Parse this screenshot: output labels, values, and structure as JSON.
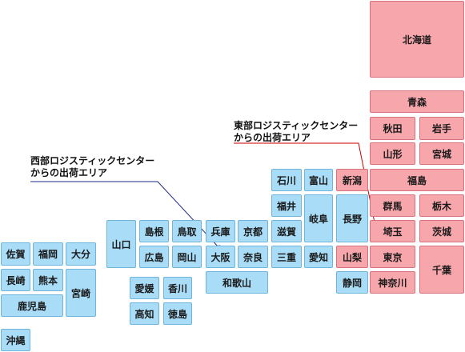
{
  "colors": {
    "west": "#a9dcf7",
    "east": "#f7a6ac",
    "west_line": "#1d2a8a",
    "east_line": "#cc0000"
  },
  "callouts": {
    "west": [
      "西部ロジスティックセンター",
      "からの出荷エリア"
    ],
    "east": [
      "東部ロジスティックセンター",
      "からの出荷エリア"
    ]
  },
  "prefectures": [
    {
      "id": "hokkaido",
      "name": "北海道",
      "region": "east"
    },
    {
      "id": "aomori",
      "name": "青森",
      "region": "east"
    },
    {
      "id": "akita",
      "name": "秋田",
      "region": "east"
    },
    {
      "id": "iwate",
      "name": "岩手",
      "region": "east"
    },
    {
      "id": "yamagata",
      "name": "山形",
      "region": "east"
    },
    {
      "id": "miyagi",
      "name": "宮城",
      "region": "east"
    },
    {
      "id": "niigata",
      "name": "新潟",
      "region": "east"
    },
    {
      "id": "fukushima",
      "name": "福島",
      "region": "east"
    },
    {
      "id": "gunma",
      "name": "群馬",
      "region": "east"
    },
    {
      "id": "tochigi",
      "name": "栃木",
      "region": "east"
    },
    {
      "id": "saitama",
      "name": "埼玉",
      "region": "east"
    },
    {
      "id": "ibaraki",
      "name": "茨城",
      "region": "east"
    },
    {
      "id": "yamanashi",
      "name": "山梨",
      "region": "east"
    },
    {
      "id": "tokyo",
      "name": "東京",
      "region": "east"
    },
    {
      "id": "chiba",
      "name": "千葉",
      "region": "east"
    },
    {
      "id": "kanagawa",
      "name": "神奈川",
      "region": "east"
    },
    {
      "id": "nagano",
      "name": "長野",
      "region": "west"
    },
    {
      "id": "shizuoka",
      "name": "静岡",
      "region": "west"
    },
    {
      "id": "ishikawa",
      "name": "石川",
      "region": "west"
    },
    {
      "id": "toyama",
      "name": "富山",
      "region": "west"
    },
    {
      "id": "fukui",
      "name": "福井",
      "region": "west"
    },
    {
      "id": "gifu",
      "name": "岐阜",
      "region": "west"
    },
    {
      "id": "shiga",
      "name": "滋賀",
      "region": "west"
    },
    {
      "id": "mie",
      "name": "三重",
      "region": "west"
    },
    {
      "id": "aichi",
      "name": "愛知",
      "region": "west"
    },
    {
      "id": "kyoto",
      "name": "京都",
      "region": "west"
    },
    {
      "id": "nara",
      "name": "奈良",
      "region": "west"
    },
    {
      "id": "hyogo",
      "name": "兵庫",
      "region": "west"
    },
    {
      "id": "osaka",
      "name": "大阪",
      "region": "west"
    },
    {
      "id": "wakayama",
      "name": "和歌山",
      "region": "west"
    },
    {
      "id": "tottori",
      "name": "鳥取",
      "region": "west"
    },
    {
      "id": "shimane",
      "name": "島根",
      "region": "west"
    },
    {
      "id": "okayama",
      "name": "岡山",
      "region": "west"
    },
    {
      "id": "hiroshima",
      "name": "広島",
      "region": "west"
    },
    {
      "id": "yamaguchi",
      "name": "山口",
      "region": "west"
    },
    {
      "id": "ehime",
      "name": "愛媛",
      "region": "west"
    },
    {
      "id": "kagawa",
      "name": "香川",
      "region": "west"
    },
    {
      "id": "kochi",
      "name": "高知",
      "region": "west"
    },
    {
      "id": "tokushima",
      "name": "徳島",
      "region": "west"
    },
    {
      "id": "saga",
      "name": "佐賀",
      "region": "west"
    },
    {
      "id": "fukuoka",
      "name": "福岡",
      "region": "west"
    },
    {
      "id": "oita",
      "name": "大分",
      "region": "west"
    },
    {
      "id": "nagasaki",
      "name": "長崎",
      "region": "west"
    },
    {
      "id": "kumamoto",
      "name": "熊本",
      "region": "west"
    },
    {
      "id": "miyazaki",
      "name": "宮崎",
      "region": "west"
    },
    {
      "id": "kagoshima",
      "name": "鹿児島",
      "region": "west"
    },
    {
      "id": "okinawa",
      "name": "沖縄",
      "region": "west"
    }
  ]
}
